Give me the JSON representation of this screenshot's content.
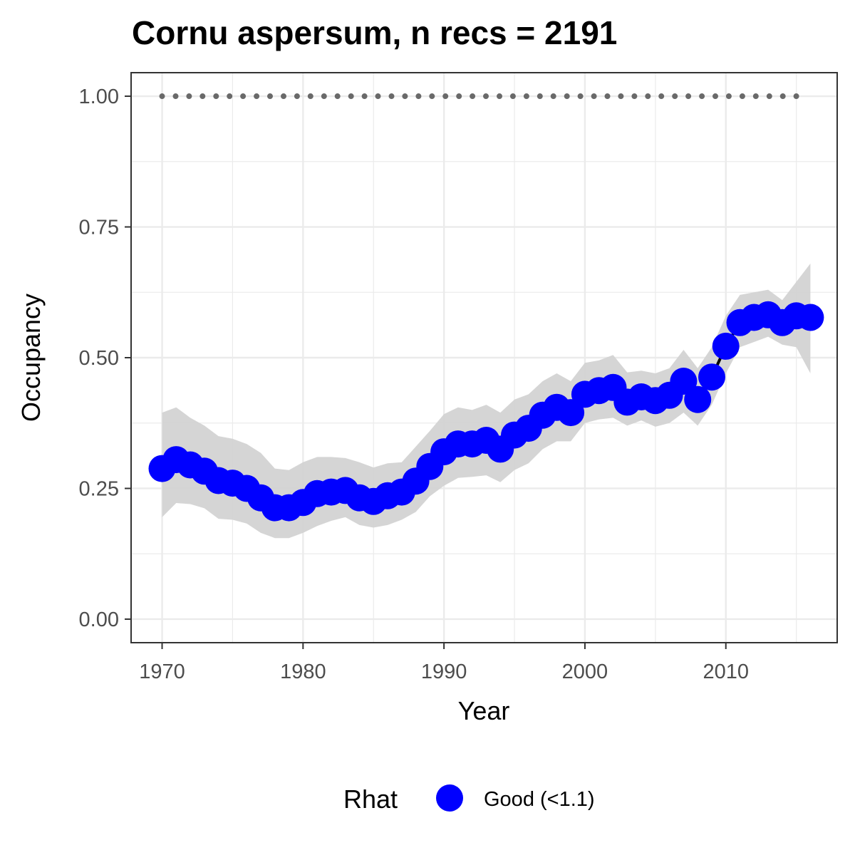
{
  "chart_data": {
    "type": "line",
    "title": "Cornu aspersum, n recs = 2191",
    "xlabel": "Year",
    "ylabel": "Occupancy",
    "xlim": [
      1967.8,
      2017.9
    ],
    "ylim": [
      -0.045,
      1.045
    ],
    "x_ticks": [
      1970,
      1980,
      1990,
      2000,
      2010
    ],
    "x_tick_labels": [
      "1970",
      "1980",
      "1990",
      "2000",
      "2010"
    ],
    "y_ticks": [
      0,
      0.25,
      0.5,
      0.75,
      1.0
    ],
    "y_tick_labels": [
      "0.00",
      "0.25",
      "0.50",
      "0.75",
      "1.00"
    ],
    "grid": true,
    "legend": {
      "title": "Rhat",
      "position": "bottom",
      "entries": [
        "Good (<1.1)"
      ]
    },
    "colors": {
      "points": "#0000ff",
      "ribbon": "#d3d3d3",
      "line": "#000000",
      "dotted": "#696969",
      "panel_border": "#333333",
      "grid": "#ebebeb"
    },
    "x": [
      1970,
      1971,
      1972,
      1973,
      1974,
      1975,
      1976,
      1977,
      1978,
      1979,
      1980,
      1981,
      1982,
      1983,
      1984,
      1985,
      1986,
      1987,
      1988,
      1989,
      1990,
      1991,
      1992,
      1993,
      1994,
      1995,
      1996,
      1997,
      1998,
      1999,
      2000,
      2001,
      2002,
      2003,
      2004,
      2005,
      2006,
      2007,
      2008,
      2009,
      2010,
      2011,
      2012,
      2013,
      2014,
      2015,
      2016
    ],
    "series": [
      {
        "role": "mean",
        "rhat": "Good (<1.1)",
        "values": [
          0.288,
          0.305,
          0.295,
          0.283,
          0.265,
          0.26,
          0.25,
          0.232,
          0.213,
          0.213,
          0.223,
          0.24,
          0.243,
          0.246,
          0.232,
          0.225,
          0.236,
          0.243,
          0.264,
          0.292,
          0.32,
          0.335,
          0.335,
          0.342,
          0.325,
          0.352,
          0.365,
          0.39,
          0.405,
          0.395,
          0.43,
          0.437,
          0.443,
          0.415,
          0.425,
          0.418,
          0.428,
          0.455,
          0.42,
          0.463,
          0.522,
          0.567,
          0.577,
          0.582,
          0.567,
          0.58,
          0.577
        ]
      },
      {
        "role": "lower",
        "values": [
          0.195,
          0.222,
          0.22,
          0.212,
          0.192,
          0.19,
          0.183,
          0.165,
          0.155,
          0.155,
          0.165,
          0.178,
          0.188,
          0.195,
          0.18,
          0.175,
          0.18,
          0.19,
          0.205,
          0.235,
          0.255,
          0.27,
          0.272,
          0.275,
          0.262,
          0.285,
          0.298,
          0.325,
          0.34,
          0.34,
          0.375,
          0.382,
          0.385,
          0.37,
          0.38,
          0.368,
          0.375,
          0.395,
          0.37,
          0.41,
          0.47,
          0.52,
          0.53,
          0.54,
          0.525,
          0.52,
          0.47
        ]
      },
      {
        "role": "upper",
        "values": [
          0.395,
          0.405,
          0.385,
          0.37,
          0.35,
          0.345,
          0.335,
          0.318,
          0.288,
          0.285,
          0.3,
          0.31,
          0.31,
          0.308,
          0.3,
          0.29,
          0.298,
          0.3,
          0.33,
          0.36,
          0.392,
          0.405,
          0.4,
          0.41,
          0.395,
          0.42,
          0.43,
          0.455,
          0.47,
          0.455,
          0.49,
          0.495,
          0.505,
          0.472,
          0.475,
          0.47,
          0.48,
          0.515,
          0.48,
          0.52,
          0.58,
          0.62,
          0.625,
          0.63,
          0.61,
          0.645,
          0.68
        ]
      },
      {
        "role": "reference",
        "style": "dotted",
        "x_range": [
          1970,
          2015
        ],
        "value": 1.0
      }
    ]
  }
}
